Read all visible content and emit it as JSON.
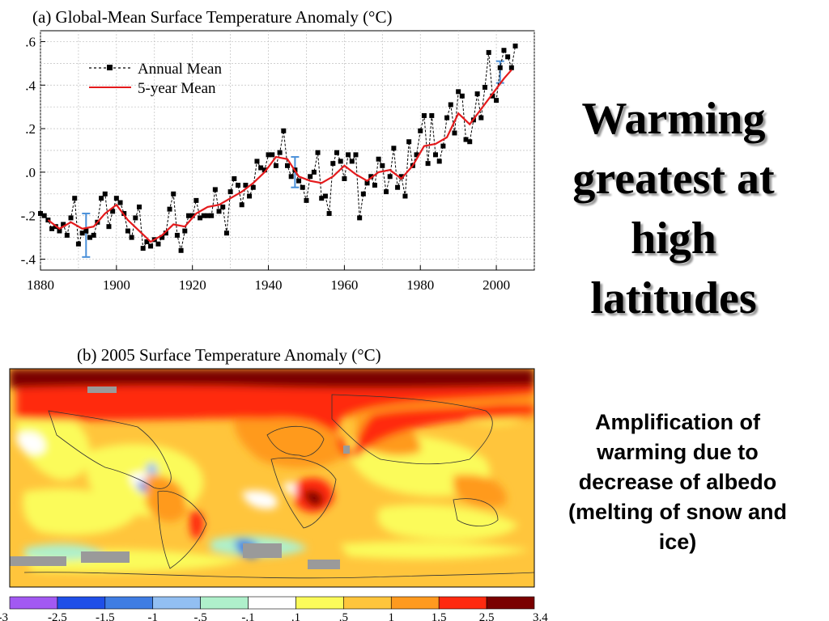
{
  "slide": {
    "title": "Warming greatest at high latitudes",
    "body": "Amplification of warming due to decrease of albedo (melting of snow and ice)"
  },
  "chart_data": [
    {
      "type": "line",
      "title": "(a)  Global-Mean Surface Temperature Anomaly (°C)",
      "xlabel": "",
      "ylabel": "",
      "xlim": [
        1880,
        2010
      ],
      "ylim": [
        -0.45,
        0.65
      ],
      "xticks": [
        1880,
        1900,
        1920,
        1940,
        1960,
        1980,
        2000
      ],
      "xtick_labels": [
        "1880",
        "1900",
        "1920",
        "1940",
        "1960",
        "1980",
        "2000"
      ],
      "yticks": [
        -0.4,
        -0.2,
        0.0,
        0.2,
        0.4,
        0.6
      ],
      "ytick_labels": [
        "-.4",
        "-.2",
        ".0",
        ".2",
        ".4",
        ".6"
      ],
      "grid": true,
      "legend_position": "top-left",
      "series": [
        {
          "name": "Annual Mean",
          "style": "dashed-black-squares",
          "color": "#000000",
          "x": [
            1880,
            1881,
            1882,
            1883,
            1884,
            1885,
            1886,
            1887,
            1888,
            1889,
            1890,
            1891,
            1892,
            1893,
            1894,
            1895,
            1896,
            1897,
            1898,
            1899,
            1900,
            1901,
            1902,
            1903,
            1904,
            1905,
            1906,
            1907,
            1908,
            1909,
            1910,
            1911,
            1912,
            1913,
            1914,
            1915,
            1916,
            1917,
            1918,
            1919,
            1920,
            1921,
            1922,
            1923,
            1924,
            1925,
            1926,
            1927,
            1928,
            1929,
            1930,
            1931,
            1932,
            1933,
            1934,
            1935,
            1936,
            1937,
            1938,
            1939,
            1940,
            1941,
            1942,
            1943,
            1944,
            1945,
            1946,
            1947,
            1948,
            1949,
            1950,
            1951,
            1952,
            1953,
            1954,
            1955,
            1956,
            1957,
            1958,
            1959,
            1960,
            1961,
            1962,
            1963,
            1964,
            1965,
            1966,
            1967,
            1968,
            1969,
            1970,
            1971,
            1972,
            1973,
            1974,
            1975,
            1976,
            1977,
            1978,
            1979,
            1980,
            1981,
            1982,
            1983,
            1984,
            1985,
            1986,
            1987,
            1988,
            1989,
            1990,
            1991,
            1992,
            1993,
            1994,
            1995,
            1996,
            1997,
            1998,
            1999,
            2000,
            2001,
            2002,
            2003,
            2004,
            2005
          ],
          "values": [
            -0.19,
            -0.2,
            -0.22,
            -0.26,
            -0.25,
            -0.27,
            -0.24,
            -0.29,
            -0.21,
            -0.12,
            -0.33,
            -0.28,
            -0.27,
            -0.3,
            -0.29,
            -0.23,
            -0.12,
            -0.1,
            -0.25,
            -0.18,
            -0.12,
            -0.14,
            -0.19,
            -0.27,
            -0.3,
            -0.21,
            -0.16,
            -0.35,
            -0.32,
            -0.34,
            -0.31,
            -0.33,
            -0.3,
            -0.28,
            -0.17,
            -0.1,
            -0.29,
            -0.36,
            -0.27,
            -0.2,
            -0.2,
            -0.13,
            -0.21,
            -0.2,
            -0.2,
            -0.2,
            -0.08,
            -0.18,
            -0.16,
            -0.28,
            -0.09,
            -0.03,
            -0.06,
            -0.15,
            -0.06,
            -0.11,
            -0.07,
            0.05,
            0.02,
            0.01,
            0.08,
            0.08,
            0.03,
            0.09,
            0.19,
            0.03,
            -0.02,
            0.01,
            -0.04,
            -0.07,
            -0.13,
            -0.02,
            0.0,
            0.09,
            -0.12,
            -0.11,
            -0.19,
            0.04,
            0.09,
            0.05,
            -0.03,
            0.08,
            0.05,
            0.08,
            -0.21,
            -0.1,
            -0.05,
            -0.02,
            -0.06,
            0.06,
            0.03,
            -0.09,
            -0.02,
            0.11,
            -0.07,
            -0.02,
            -0.11,
            0.14,
            0.03,
            0.08,
            0.19,
            0.26,
            0.04,
            0.26,
            0.08,
            0.05,
            0.12,
            0.25,
            0.31,
            0.18,
            0.37,
            0.35,
            0.15,
            0.14,
            0.24,
            0.36,
            0.25,
            0.39,
            0.55,
            0.35,
            0.33,
            0.48,
            0.56,
            0.53,
            0.48,
            0.58
          ]
        },
        {
          "name": "5-year Mean",
          "color": "#e41a1c",
          "x": [
            1882,
            1885,
            1888,
            1891,
            1894,
            1897,
            1900,
            1903,
            1906,
            1909,
            1912,
            1915,
            1918,
            1921,
            1924,
            1927,
            1930,
            1933,
            1936,
            1939,
            1942,
            1945,
            1948,
            1951,
            1954,
            1957,
            1960,
            1963,
            1966,
            1969,
            1972,
            1975,
            1978,
            1981,
            1984,
            1987,
            1990,
            1993,
            1996,
            1999,
            2002,
            2004
          ],
          "values": [
            -0.22,
            -0.26,
            -0.23,
            -0.26,
            -0.25,
            -0.19,
            -0.15,
            -0.22,
            -0.27,
            -0.32,
            -0.29,
            -0.24,
            -0.25,
            -0.19,
            -0.16,
            -0.15,
            -0.12,
            -0.09,
            -0.05,
            0.0,
            0.07,
            0.06,
            -0.02,
            -0.04,
            -0.05,
            -0.02,
            0.03,
            -0.01,
            -0.04,
            0.0,
            0.01,
            -0.03,
            0.03,
            0.12,
            0.13,
            0.16,
            0.27,
            0.22,
            0.29,
            0.36,
            0.43,
            0.47
          ]
        }
      ],
      "error_bars": [
        {
          "x": 1892,
          "low": -0.39,
          "high": -0.19,
          "color": "#4a90d9"
        },
        {
          "x": 1947,
          "low": -0.07,
          "high": 0.07,
          "color": "#4a90d9"
        },
        {
          "x": 2001,
          "low": 0.41,
          "high": 0.51,
          "color": "#4a90d9"
        }
      ]
    },
    {
      "type": "heatmap",
      "title": "(b) 2005 Surface Temperature Anomaly (°C)",
      "colorbar": {
        "tick_labels": [
          "-3",
          "-2.5",
          "-1.5",
          "-1",
          "-.5",
          "-.1",
          ".1",
          ".5",
          "1",
          "1.5",
          "2.5",
          "3.4"
        ],
        "colors": [
          "#a259f2",
          "#1f4fe8",
          "#3f7de3",
          "#92bff2",
          "#aff0cb",
          "#ffffff",
          "#fbfb5a",
          "#ffc53c",
          "#ff9a1f",
          "#ff2a10",
          "#7a0000"
        ]
      },
      "colors": {
        "land_missing": "#9a9a9a",
        "arctic": "#7a0000"
      }
    }
  ]
}
